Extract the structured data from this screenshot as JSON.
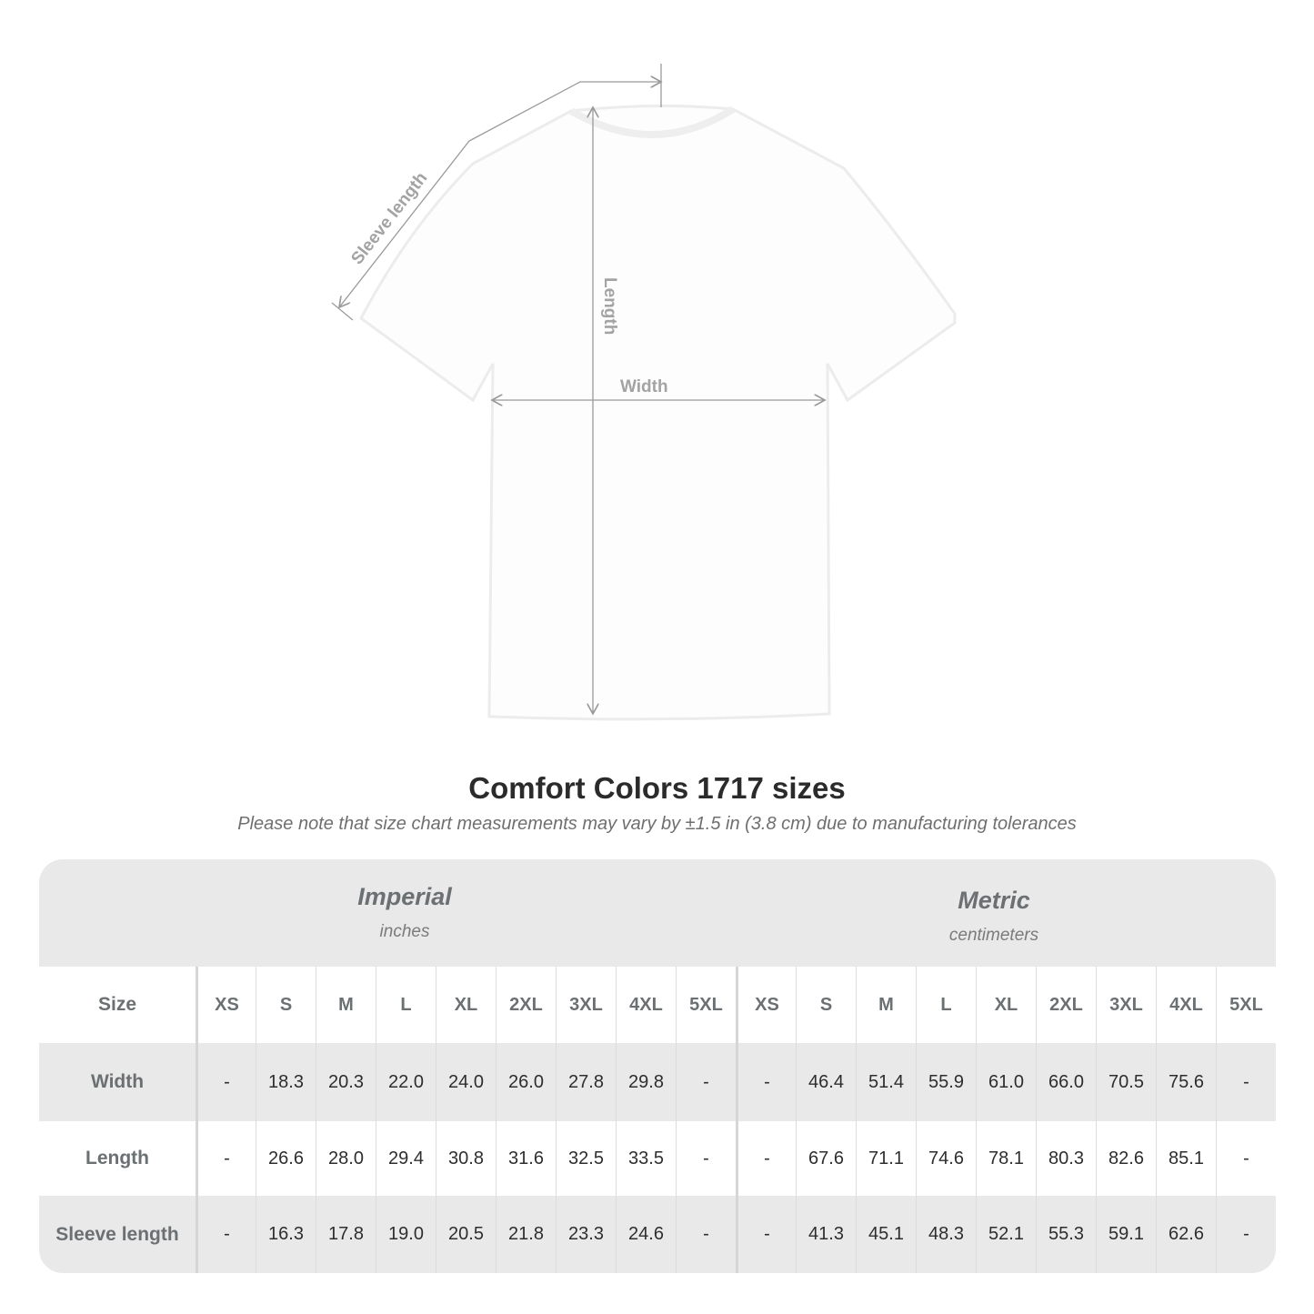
{
  "diagram": {
    "labels": {
      "sleeve": "Sleeve length",
      "length": "Length",
      "width": "Width"
    },
    "line_color": "#9a9a9a"
  },
  "title": "Comfort Colors 1717 sizes",
  "note": "Please note that size chart measurements may vary by ±1.5 in (3.8 cm) due to manufacturing tolerances",
  "table": {
    "imperial": {
      "name": "Imperial",
      "unit": "inches"
    },
    "metric": {
      "name": "Metric",
      "unit": "centimeters"
    },
    "size_label": "Size",
    "sizes": [
      "XS",
      "S",
      "M",
      "L",
      "XL",
      "2XL",
      "3XL",
      "4XL",
      "5XL"
    ],
    "rows": [
      {
        "label": "Width",
        "imperial": [
          "-",
          "18.3",
          "20.3",
          "22.0",
          "24.0",
          "26.0",
          "27.8",
          "29.8",
          "-"
        ],
        "metric": [
          "-",
          "46.4",
          "51.4",
          "55.9",
          "61.0",
          "66.0",
          "70.5",
          "75.6",
          "-"
        ]
      },
      {
        "label": "Length",
        "imperial": [
          "-",
          "26.6",
          "28.0",
          "29.4",
          "30.8",
          "31.6",
          "32.5",
          "33.5",
          "-"
        ],
        "metric": [
          "-",
          "67.6",
          "71.1",
          "74.6",
          "78.1",
          "80.3",
          "82.6",
          "85.1",
          "-"
        ]
      },
      {
        "label": "Sleeve length",
        "imperial": [
          "-",
          "16.3",
          "17.8",
          "19.0",
          "20.5",
          "21.8",
          "23.3",
          "24.6",
          "-"
        ],
        "metric": [
          "-",
          "41.3",
          "45.1",
          "48.3",
          "52.1",
          "55.3",
          "59.1",
          "62.6",
          "-"
        ]
      }
    ],
    "colors": {
      "band": "#e9e9ea",
      "label_text": "#6b7072"
    }
  }
}
